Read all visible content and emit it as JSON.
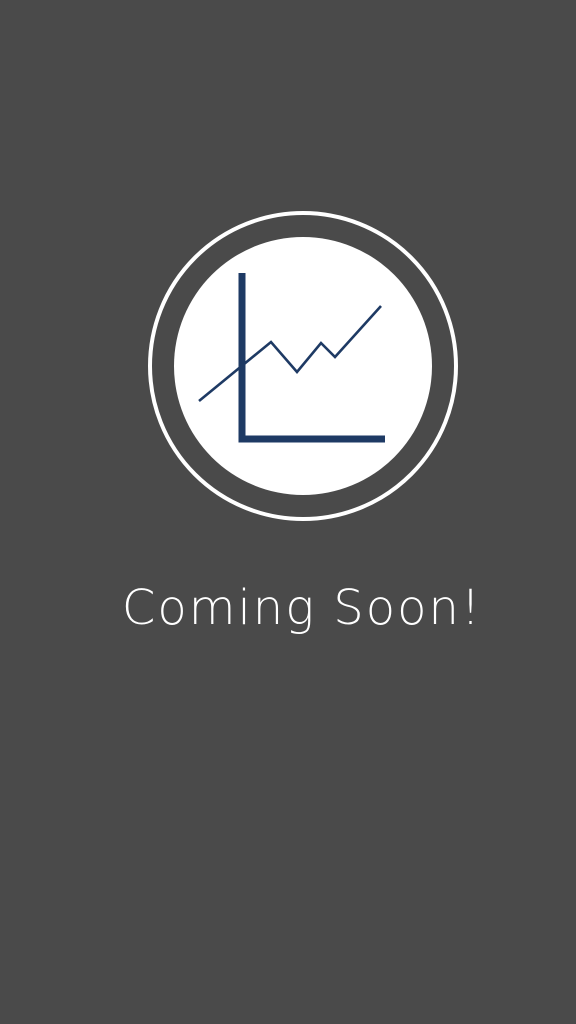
{
  "screen": {
    "message": "Coming Soon!",
    "icon": "line-chart-icon"
  },
  "colors": {
    "background": "#4a4a4a",
    "ring": "#ffffff",
    "disc": "#ffffff",
    "chart_accent": "#1e3a64",
    "text": "#ffffff"
  }
}
